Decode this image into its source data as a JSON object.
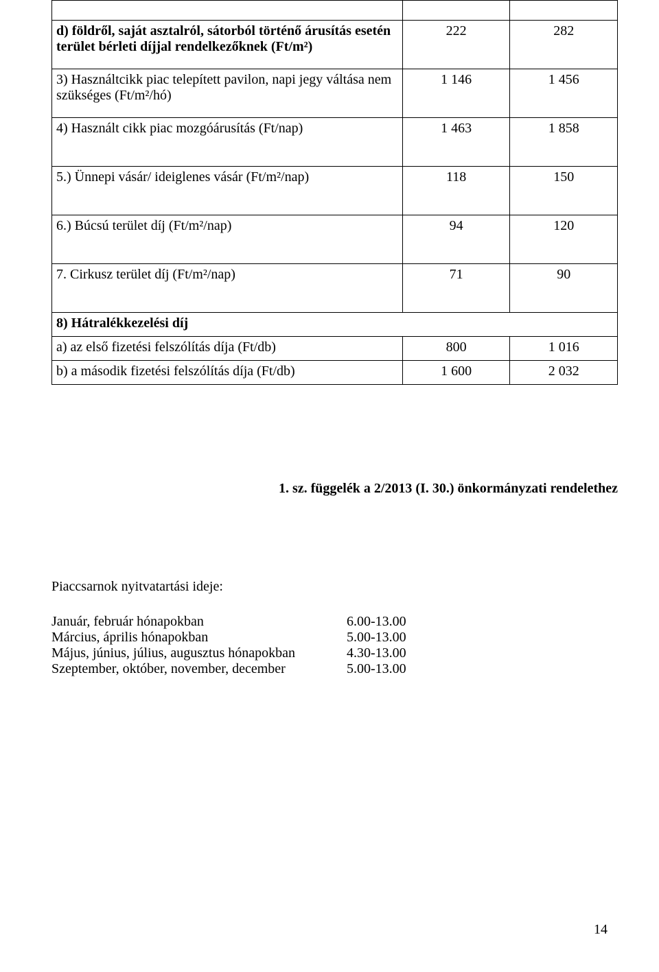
{
  "table": {
    "rows": [
      {
        "desc": "",
        "col1": "",
        "col2": "",
        "type": "header-empty",
        "bold": false
      },
      {
        "desc": "d) földről, saját asztalról, sátorból történő árusítás esetén terület bérleti díjjal rendelkezőknek (Ft/m²)",
        "col1": "222",
        "col2": "282",
        "type": "tall",
        "bold": true
      },
      {
        "desc": "3) Használtcikk piac telepített pavilon,  napi jegy váltása nem szükséges (Ft/m²/hó)",
        "col1": "1 146",
        "col2": "1 456",
        "type": "tall",
        "bold": false
      },
      {
        "desc": "4) Használt cikk piac mozgóárusítás (Ft/nap)",
        "col1": "1 463",
        "col2": "1 858",
        "type": "tall",
        "bold": false
      },
      {
        "desc": "5.) Ünnepi vásár/ ideiglenes vásár (Ft/m²/nap)",
        "col1": "118",
        "col2": "150",
        "type": "tall",
        "bold": false
      },
      {
        "desc": "6.) Búcsú terület díj (Ft/m²/nap)",
        "col1": "94",
        "col2": "120",
        "type": "tall",
        "bold": false
      },
      {
        "desc": "7. Cirkusz terület díj (Ft/m²/nap)",
        "col1": "71",
        "col2": "90",
        "type": "tall",
        "bold": false
      },
      {
        "desc": "8) Hátralékkezelési díj",
        "col1": "",
        "col2": "",
        "type": "short",
        "bold": true,
        "span": true
      },
      {
        "desc": "a) az első fizetési felszólítás díja (Ft/db)",
        "col1": "800",
        "col2": "1 016",
        "type": "short",
        "bold": false
      },
      {
        "desc": "b) a második fizetési felszólítás díja (Ft/db)",
        "col1": "1 600",
        "col2": "2 032",
        "type": "short",
        "bold": false
      }
    ]
  },
  "appendix_title": "1. sz. függelék a  2/2013 (I. 30.) önkormányzati rendelethez",
  "opening": {
    "heading": "Piaccsarnok nyitvatartási ideje:",
    "items": [
      {
        "label": "Január, február hónapokban",
        "time": "6.00-13.00"
      },
      {
        "label": "Március, április hónapokban",
        "time": "5.00-13.00"
      },
      {
        "label": "Május, június, július, augusztus hónapokban",
        "time": "4.30-13.00"
      },
      {
        "label": "Szeptember, október, november, december",
        "time": "5.00-13.00"
      }
    ]
  },
  "page_number": "14"
}
